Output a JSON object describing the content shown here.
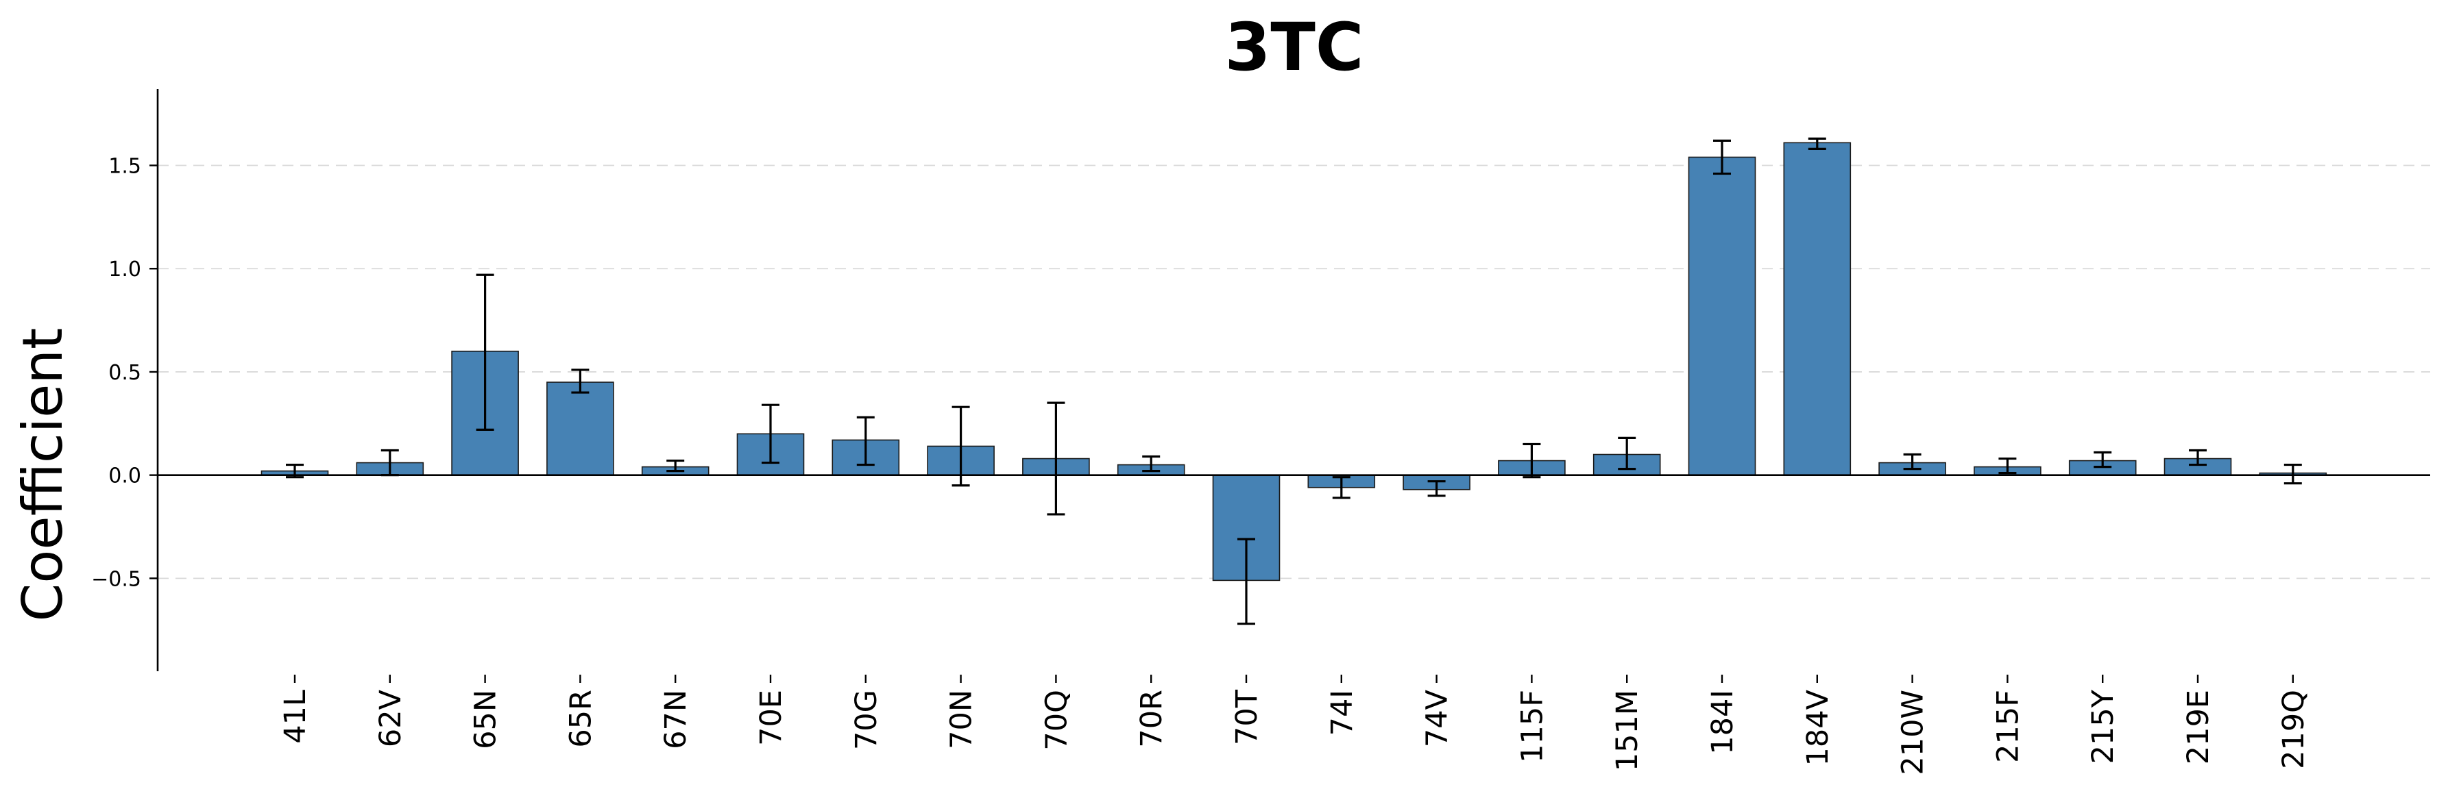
{
  "chart_data": {
    "type": "bar",
    "title": "3TC",
    "xlabel": "",
    "ylabel": "Coefficient",
    "ylim": [
      -0.95,
      1.87
    ],
    "yticks": [
      -0.5,
      0.0,
      0.5,
      1.0,
      1.5
    ],
    "ytick_labels": [
      "−0.5",
      "0.0",
      "0.5",
      "1.0",
      "1.5"
    ],
    "grid": "horizontal dashed",
    "bar_color": "#4682B4",
    "categories": [
      "41L",
      "62V",
      "65N",
      "65R",
      "67N",
      "70E",
      "70G",
      "70N",
      "70Q",
      "70R",
      "70T",
      "74I",
      "74V",
      "115F",
      "151M",
      "184I",
      "184V",
      "210W",
      "215F",
      "215Y",
      "219E",
      "219Q"
    ],
    "values": [
      0.02,
      0.06,
      0.6,
      0.45,
      0.04,
      0.2,
      0.17,
      0.14,
      0.08,
      0.05,
      -0.51,
      -0.06,
      -0.07,
      0.07,
      0.1,
      1.54,
      1.61,
      0.06,
      0.04,
      0.07,
      0.08,
      0.01
    ],
    "error_low": [
      -0.01,
      0.0,
      0.22,
      0.4,
      0.02,
      0.06,
      0.05,
      -0.05,
      -0.19,
      0.02,
      -0.72,
      -0.11,
      -0.1,
      -0.01,
      0.03,
      1.46,
      1.58,
      0.03,
      0.01,
      0.04,
      0.05,
      -0.04
    ],
    "error_high": [
      0.05,
      0.12,
      0.97,
      0.51,
      0.07,
      0.34,
      0.28,
      0.33,
      0.35,
      0.09,
      -0.31,
      -0.01,
      -0.03,
      0.15,
      0.18,
      1.62,
      1.63,
      0.1,
      0.08,
      0.11,
      0.12,
      0.05
    ]
  }
}
